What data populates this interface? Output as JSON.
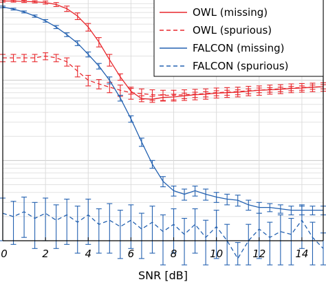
{
  "chart_data": {
    "type": "line",
    "xlabel": "SNR [dB]",
    "ylabel": "",
    "xlim": [
      0,
      15
    ],
    "y_scale": "log",
    "ylim": [
      0.001,
      1
    ],
    "grid": true,
    "legend_position": "top-right",
    "x_ticks": [
      "0",
      "2",
      "4",
      "6",
      "8",
      "10",
      "12",
      "14"
    ],
    "x": [
      0,
      0.5,
      1,
      1.5,
      2,
      2.5,
      3,
      3.5,
      4,
      4.5,
      5,
      5.5,
      6,
      6.5,
      7,
      7.5,
      8,
      8.5,
      9,
      9.5,
      10,
      10.5,
      11,
      11.5,
      12,
      12.5,
      13,
      13.5,
      14,
      14.5,
      15
    ],
    "series": [
      {
        "name": "OWL (missing)",
        "color": "#e8262b",
        "dash": "solid",
        "values": [
          0.97,
          0.97,
          0.96,
          0.95,
          0.93,
          0.88,
          0.78,
          0.63,
          0.46,
          0.3,
          0.18,
          0.11,
          0.073,
          0.059,
          0.058,
          0.061,
          0.062,
          0.064,
          0.066,
          0.067,
          0.069,
          0.07,
          0.071,
          0.073,
          0.075,
          0.076,
          0.077,
          0.079,
          0.08,
          0.082,
          0.083
        ],
        "errors": [
          0.03,
          0.03,
          0.03,
          0.03,
          0.04,
          0.05,
          0.06,
          0.06,
          0.05,
          0.04,
          0.03,
          0.01,
          0.006,
          0.005,
          0.005,
          0.005,
          0.005,
          0.005,
          0.005,
          0.005,
          0.005,
          0.005,
          0.005,
          0.005,
          0.005,
          0.005,
          0.005,
          0.005,
          0.005,
          0.005,
          0.005
        ]
      },
      {
        "name": "OWL (spurious)",
        "color": "#e8262b",
        "dash": "dashed",
        "values": [
          0.19,
          0.19,
          0.19,
          0.19,
          0.2,
          0.19,
          0.17,
          0.13,
          0.1,
          0.09,
          0.082,
          0.075,
          0.07,
          0.068,
          0.066,
          0.065,
          0.065,
          0.066,
          0.067,
          0.068,
          0.07,
          0.071,
          0.072,
          0.074,
          0.075,
          0.077,
          0.078,
          0.08,
          0.081,
          0.082,
          0.083
        ],
        "errors": [
          0.02,
          0.02,
          0.02,
          0.02,
          0.02,
          0.02,
          0.02,
          0.02,
          0.015,
          0.012,
          0.012,
          0.012,
          0.012,
          0.01,
          0.01,
          0.01,
          0.01,
          0.01,
          0.01,
          0.01,
          0.01,
          0.01,
          0.01,
          0.01,
          0.01,
          0.01,
          0.01,
          0.01,
          0.01,
          0.01,
          0.01
        ]
      },
      {
        "name": "FALCON (missing)",
        "color": "#2260b0",
        "dash": "solid",
        "values": [
          0.82,
          0.77,
          0.71,
          0.63,
          0.55,
          0.46,
          0.37,
          0.29,
          0.21,
          0.15,
          0.1,
          0.06,
          0.033,
          0.017,
          0.009,
          0.0055,
          0.0042,
          0.0038,
          0.0042,
          0.0038,
          0.0035,
          0.0033,
          0.0032,
          0.0028,
          0.0026,
          0.0026,
          0.0025,
          0.0024,
          0.0024,
          0.0024,
          0.0024
        ],
        "errors": [
          0.02,
          0.02,
          0.02,
          0.02,
          0.02,
          0.02,
          0.02,
          0.02,
          0.015,
          0.012,
          0.01,
          0.005,
          0.003,
          0.002,
          0.001,
          0.0008,
          0.0006,
          0.0006,
          0.0006,
          0.0006,
          0.0005,
          0.0005,
          0.0005,
          0.0004,
          0.0004,
          0.0003,
          0.0003,
          0.0003,
          0.0003,
          0.0003,
          0.0003
        ]
      },
      {
        "name": "FALCON (spurious)",
        "color": "#2260b0",
        "dash": "dashed",
        "values": [
          0.0022,
          0.002,
          0.0023,
          0.0019,
          0.0022,
          0.0018,
          0.0021,
          0.0017,
          0.0021,
          0.0016,
          0.0018,
          0.0015,
          0.0018,
          0.0014,
          0.0017,
          0.0013,
          0.0016,
          0.0012,
          0.0016,
          0.0011,
          0.0015,
          0.001,
          0.0006,
          0.001,
          0.0014,
          0.0011,
          0.0013,
          0.0012,
          0.0018,
          0.0011,
          0.0008
        ],
        "errors": [
          0.0012,
          0.0011,
          0.0012,
          0.0011,
          0.0012,
          0.001,
          0.0012,
          0.001,
          0.0012,
          0.0009,
          0.0011,
          0.0009,
          0.001,
          0.0008,
          0.001,
          0.0008,
          0.0009,
          0.0007,
          0.0009,
          0.0007,
          0.0009,
          0.0006,
          0.00035,
          0.0006,
          0.0008,
          0.0006,
          0.0008,
          0.0007,
          0.001,
          0.0006,
          0.00045
        ]
      }
    ]
  }
}
